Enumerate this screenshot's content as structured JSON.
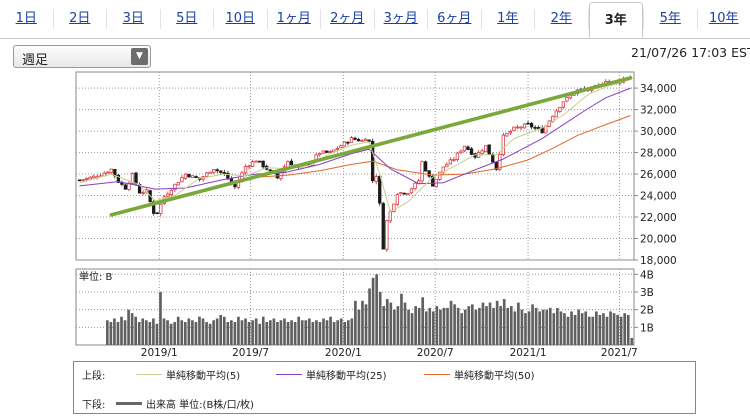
{
  "tabs": [
    {
      "label": "1日",
      "active": false
    },
    {
      "label": "2日",
      "active": false
    },
    {
      "label": "3日",
      "active": false
    },
    {
      "label": "5日",
      "active": false
    },
    {
      "label": "10日",
      "active": false
    },
    {
      "label": "1ヶ月",
      "active": false
    },
    {
      "label": "2ヶ月",
      "active": false
    },
    {
      "label": "3ヶ月",
      "active": false
    },
    {
      "label": "6ヶ月",
      "active": false
    },
    {
      "label": "1年",
      "active": false
    },
    {
      "label": "2年",
      "active": false
    },
    {
      "label": "3年",
      "active": true
    },
    {
      "label": "5年",
      "active": false
    },
    {
      "label": "10年",
      "active": false
    }
  ],
  "period_select": {
    "value": "週足"
  },
  "timestamp": "21/07/26 17:03 EST",
  "legend": {
    "upper_label": "上段:",
    "lower_label": "下段:",
    "items": [
      {
        "label": "単純移動平均(5)",
        "color": "#c9cf8f"
      },
      {
        "label": "単純移動平均(25)",
        "color": "#8a3ec1"
      },
      {
        "label": "単純移動平均(50)",
        "color": "#e0692a"
      }
    ],
    "volume_label": "出来高 単位:(B株/口/枚)",
    "volume_color": "#666666"
  },
  "chart_data": [
    {
      "type": "candlestick",
      "title": "",
      "ylim": [
        18000,
        35500
      ],
      "yticks": [
        18000,
        20000,
        22000,
        24000,
        26000,
        28000,
        30000,
        32000,
        34000
      ],
      "ytick_labels": [
        "18,000",
        "20,000",
        "22,000",
        "24,000",
        "26,000",
        "28,000",
        "30,000",
        "32,000",
        "34,000"
      ],
      "x_ticks": [
        "2019/1",
        "2019/7",
        "2020/1",
        "2020/7",
        "2021/1",
        "2021/7"
      ],
      "close_path": [
        [
          "2018/07/27",
          25450
        ],
        [
          "2018/08/17",
          25650
        ],
        [
          "2018/09/07",
          25950
        ],
        [
          "2018/09/28",
          26450
        ],
        [
          "2018/10/12",
          25300
        ],
        [
          "2018/10/26",
          24700
        ],
        [
          "2018/11/09",
          25900
        ],
        [
          "2018/11/23",
          24300
        ],
        [
          "2018/12/07",
          24400
        ],
        [
          "2018/12/24",
          22000
        ],
        [
          "2019/01/11",
          23900
        ],
        [
          "2019/02/01",
          25000
        ],
        [
          "2019/02/22",
          26000
        ],
        [
          "2019/03/22",
          25500
        ],
        [
          "2019/04/18",
          26550
        ],
        [
          "2019/05/10",
          25950
        ],
        [
          "2019/05/31",
          24800
        ],
        [
          "2019/06/21",
          26700
        ],
        [
          "2019/07/12",
          27300
        ],
        [
          "2019/08/02",
          26500
        ],
        [
          "2019/08/23",
          25650
        ],
        [
          "2019/09/13",
          27200
        ],
        [
          "2019/10/04",
          26550
        ],
        [
          "2019/10/25",
          26950
        ],
        [
          "2019/11/15",
          28000
        ],
        [
          "2019/12/06",
          28000
        ],
        [
          "2019/12/27",
          28650
        ],
        [
          "2020/01/17",
          29300
        ],
        [
          "2020/02/07",
          29100
        ],
        [
          "2020/02/14",
          29400
        ],
        [
          "2020/02/21",
          28990
        ],
        [
          "2020/02/28",
          25400
        ],
        [
          "2020/03/06",
          25860
        ],
        [
          "2020/03/13",
          23180
        ],
        [
          "2020/03/20",
          19170
        ],
        [
          "2020/03/27",
          21640
        ],
        [
          "2020/04/17",
          24240
        ],
        [
          "2020/05/08",
          24330
        ],
        [
          "2020/05/29",
          25380
        ],
        [
          "2020/06/05",
          27110
        ],
        [
          "2020/06/26",
          25000
        ],
        [
          "2020/07/17",
          26670
        ],
        [
          "2020/08/07",
          27430
        ],
        [
          "2020/08/28",
          28650
        ],
        [
          "2020/09/18",
          27650
        ],
        [
          "2020/10/09",
          28590
        ],
        [
          "2020/10/30",
          26500
        ],
        [
          "2020/11/13",
          29480
        ],
        [
          "2020/12/04",
          30220
        ],
        [
          "2020/12/31",
          30600
        ],
        [
          "2021/01/29",
          29980
        ],
        [
          "2021/02/19",
          31500
        ],
        [
          "2021/03/12",
          32780
        ],
        [
          "2021/04/09",
          33800
        ],
        [
          "2021/04/30",
          33870
        ],
        [
          "2021/05/21",
          34200
        ],
        [
          "2021/06/04",
          34750
        ],
        [
          "2021/06/25",
          34430
        ],
        [
          "2021/07/09",
          34870
        ],
        [
          "2021/07/23",
          35060
        ]
      ],
      "sma5_path": [
        [
          "2018/07/27",
          25200
        ],
        [
          "2018/09/28",
          26000
        ],
        [
          "2018/11/23",
          25000
        ],
        [
          "2018/12/24",
          23500
        ],
        [
          "2019/02/01",
          24000
        ],
        [
          "2019/03/22",
          25600
        ],
        [
          "2019/05/10",
          26000
        ],
        [
          "2019/06/21",
          25800
        ],
        [
          "2019/08/02",
          26600
        ],
        [
          "2019/09/13",
          26500
        ],
        [
          "2019/10/25",
          26800
        ],
        [
          "2019/12/06",
          27900
        ],
        [
          "2020/01/17",
          28700
        ],
        [
          "2020/02/21",
          29000
        ],
        [
          "2020/03/13",
          26000
        ],
        [
          "2020/04/03",
          22500
        ],
        [
          "2020/05/08",
          23400
        ],
        [
          "2020/06/26",
          25700
        ],
        [
          "2020/08/07",
          26700
        ],
        [
          "2020/09/18",
          27800
        ],
        [
          "2020/10/30",
          27800
        ],
        [
          "2020/12/04",
          29300
        ],
        [
          "2021/01/29",
          30300
        ],
        [
          "2021/03/12",
          31500
        ],
        [
          "2021/04/30",
          33400
        ],
        [
          "2021/06/04",
          34100
        ],
        [
          "2021/07/23",
          34800
        ]
      ],
      "sma25_path": [
        [
          "2018/07/27",
          24900
        ],
        [
          "2018/10/12",
          25300
        ],
        [
          "2018/12/24",
          24600
        ],
        [
          "2019/02/22",
          24700
        ],
        [
          "2019/05/10",
          25500
        ],
        [
          "2019/07/12",
          26000
        ],
        [
          "2019/09/13",
          26200
        ],
        [
          "2019/11/15",
          26900
        ],
        [
          "2020/01/17",
          27900
        ],
        [
          "2020/02/21",
          28300
        ],
        [
          "2020/04/03",
          26500
        ],
        [
          "2020/05/29",
          25100
        ],
        [
          "2020/07/17",
          25200
        ],
        [
          "2020/09/18",
          26400
        ],
        [
          "2020/11/13",
          27400
        ],
        [
          "2021/01/29",
          29300
        ],
        [
          "2021/03/12",
          30600
        ],
        [
          "2021/04/30",
          32100
        ],
        [
          "2021/06/04",
          33100
        ],
        [
          "2021/07/23",
          34000
        ]
      ],
      "sma50_path": [
        [
          "2019/07/12",
          25700
        ],
        [
          "2019/09/13",
          25900
        ],
        [
          "2019/11/15",
          26300
        ],
        [
          "2020/01/17",
          26900
        ],
        [
          "2020/02/28",
          27200
        ],
        [
          "2020/04/17",
          26400
        ],
        [
          "2020/06/26",
          25900
        ],
        [
          "2020/08/28",
          26000
        ],
        [
          "2020/10/30",
          26500
        ],
        [
          "2020/12/31",
          27300
        ],
        [
          "2021/02/19",
          28400
        ],
        [
          "2021/04/09",
          29600
        ],
        [
          "2021/06/04",
          30600
        ],
        [
          "2021/07/23",
          31450
        ]
      ],
      "trendline": [
        [
          "2018/09/28",
          22200
        ],
        [
          "2021/07/23",
          34950
        ]
      ]
    },
    {
      "type": "bar",
      "title": "",
      "unit_label": "単位: B",
      "ylim": [
        0,
        4
      ],
      "yticks": [
        1,
        2,
        3,
        4
      ],
      "ytick_labels": [
        "1B",
        "2B",
        "3B",
        "4B"
      ],
      "values": [
        1.4,
        1.3,
        1.5,
        1.3,
        1.6,
        1.4,
        2.0,
        1.8,
        1.6,
        1.3,
        1.5,
        1.4,
        1.3,
        1.5,
        1.2,
        3.0,
        1.5,
        1.4,
        1.2,
        1.3,
        1.6,
        1.4,
        1.3,
        1.5,
        1.4,
        1.3,
        1.6,
        1.5,
        1.3,
        1.2,
        1.4,
        1.5,
        1.7,
        1.6,
        1.3,
        1.4,
        1.3,
        1.6,
        1.4,
        1.5,
        1.3,
        1.4,
        1.5,
        1.2,
        1.6,
        1.3,
        1.4,
        1.5,
        1.3,
        1.4,
        1.5,
        1.3,
        1.4,
        1.3,
        1.6,
        1.4,
        1.4,
        1.5,
        1.3,
        1.4,
        1.3,
        1.5,
        1.4,
        1.6,
        1.3,
        1.4,
        1.5,
        1.3,
        1.4,
        1.5,
        2.5,
        2.0,
        2.5,
        2.3,
        3.2,
        3.8,
        4.0,
        3.0,
        2.2,
        2.6,
        2.4,
        2.0,
        2.2,
        2.9,
        2.4,
        2.0,
        1.8,
        2.2,
        2.1,
        2.7,
        1.9,
        2.1,
        1.9,
        2.2,
        2.0,
        2.1,
        2.1,
        2.5,
        2.3,
        2.1,
        1.8,
        2.0,
        2.2,
        2.3,
        2.0,
        2.1,
        2.4,
        2.2,
        2.4,
        2.1,
        2.5,
        2.2,
        2.6,
        2.1,
        2.2,
        1.9,
        2.4,
        2.0,
        1.8,
        1.9,
        2.3,
        2.1,
        1.9,
        2.0,
        2.0,
        2.1,
        1.8,
        2.1,
        1.9,
        1.8,
        1.6,
        1.9,
        1.7,
        2.0,
        1.8,
        1.9,
        1.6,
        1.6,
        1.9,
        1.7,
        1.8,
        1.6,
        1.9,
        1.8,
        1.7,
        1.6,
        1.8,
        1.7,
        0.4
      ]
    }
  ]
}
